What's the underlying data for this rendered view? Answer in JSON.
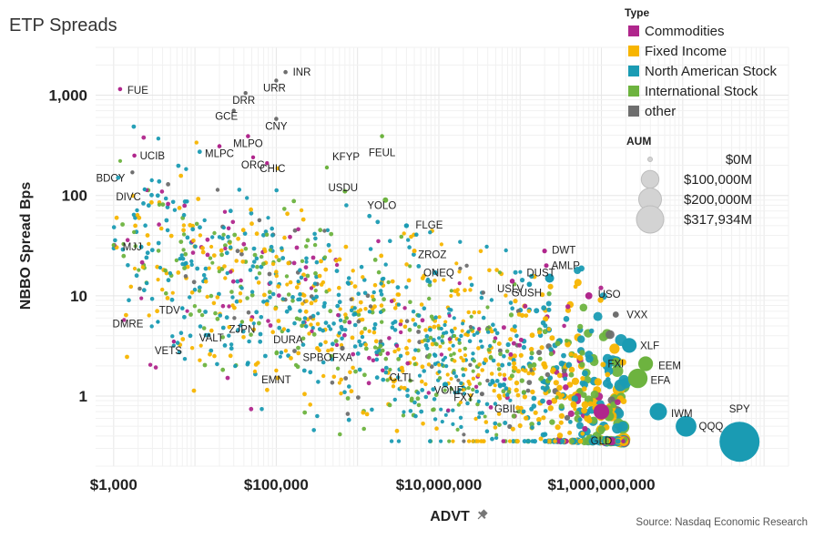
{
  "chart_data": {
    "type": "scatter",
    "title": "ETP Spreads",
    "xlabel": "ADVT",
    "ylabel": "NBBO Spread Bps",
    "x_scale": "log",
    "y_scale": "log",
    "xlim": [
      600,
      200000000000
    ],
    "ylim": [
      0.2,
      3000
    ],
    "x_ticks": [
      1000,
      100000,
      10000000,
      1000000000
    ],
    "x_tick_labels": [
      "$1,000",
      "$100,000",
      "$10,000,000",
      "$1,000,000,000"
    ],
    "y_ticks": [
      1,
      10,
      100,
      1000
    ],
    "y_tick_labels": [
      "1",
      "10",
      "100",
      "1,000"
    ],
    "grid": true,
    "legend_type": {
      "title": "Type",
      "entries": [
        {
          "name": "Commodities",
          "color": "#b0268c"
        },
        {
          "name": "Fixed Income",
          "color": "#f7b500"
        },
        {
          "name": "North American Stock",
          "color": "#1a9bb3"
        },
        {
          "name": "International Stock",
          "color": "#6db33f"
        },
        {
          "name": "other",
          "color": "#6e6e6e"
        }
      ]
    },
    "legend_size": {
      "title": "AUM",
      "entries": [
        {
          "label": "$0M",
          "value": 0
        },
        {
          "label": "$100,000M",
          "value": 100000
        },
        {
          "label": "$200,000M",
          "value": 200000
        },
        {
          "label": "$317,934M",
          "value": 317934
        }
      ]
    },
    "source": "Source: Nasdaq Economic Research",
    "labeled_points": [
      {
        "label": "FUE",
        "type": "Commodities",
        "advt": 1200,
        "spread": 1150,
        "aum": 50
      },
      {
        "label": "INR",
        "type": "other",
        "advt": 130000,
        "spread": 1700,
        "aum": 50
      },
      {
        "label": "URR",
        "type": "other",
        "advt": 100000,
        "spread": 1400,
        "aum": 30
      },
      {
        "label": "DRR",
        "type": "other",
        "advt": 42000,
        "spread": 1050,
        "aum": 20
      },
      {
        "label": "GCE",
        "type": "other",
        "advt": 30000,
        "spread": 700,
        "aum": 30
      },
      {
        "label": "CNY",
        "type": "other",
        "advt": 100000,
        "spread": 580,
        "aum": 60
      },
      {
        "label": "MLPO",
        "type": "Commodities",
        "advt": 45000,
        "spread": 390,
        "aum": 60
      },
      {
        "label": "MLPC",
        "type": "Commodities",
        "advt": 20000,
        "spread": 310,
        "aum": 50
      },
      {
        "label": "UCIB",
        "type": "Commodities",
        "advt": 1800,
        "spread": 250,
        "aum": 80
      },
      {
        "label": "ORG",
        "type": "Commodities",
        "advt": 52000,
        "spread": 240,
        "aum": 40
      },
      {
        "label": "CHIC",
        "type": "Commodities",
        "advt": 77000,
        "spread": 210,
        "aum": 40
      },
      {
        "label": "BDCY",
        "type": "other",
        "advt": 1700,
        "spread": 170,
        "aum": 40
      },
      {
        "label": "KFYP",
        "type": "International Stock",
        "advt": 420000,
        "spread": 190,
        "aum": 40
      },
      {
        "label": "FEUL",
        "type": "International Stock",
        "advt": 2000000,
        "spread": 390,
        "aum": 60
      },
      {
        "label": "DIVC",
        "type": "North American Stock",
        "advt": 2400,
        "spread": 115,
        "aum": 40
      },
      {
        "label": "USDU",
        "type": "International Stock",
        "advt": 700000,
        "spread": 110,
        "aum": 200
      },
      {
        "label": "YOLO",
        "type": "International Stock",
        "advt": 2200000,
        "spread": 90,
        "aum": 800
      },
      {
        "label": "FLGE",
        "type": "North American Stock",
        "advt": 4000000,
        "spread": 50,
        "aum": 400
      },
      {
        "label": "ZROZ",
        "type": "Fixed Income",
        "advt": 5000000,
        "spread": 28,
        "aum": 200
      },
      {
        "label": "MJJ",
        "type": "International Stock",
        "advt": 1000,
        "spread": 32,
        "aum": 20
      },
      {
        "label": "ONEQ",
        "type": "North American Stock",
        "advt": 9000000,
        "spread": 17,
        "aum": 400
      },
      {
        "label": "DWT",
        "type": "Commodities",
        "advt": 200000000,
        "spread": 28,
        "aum": 300
      },
      {
        "label": "DUST",
        "type": "Commodities",
        "advt": 210000000,
        "spread": 20,
        "aum": 200
      },
      {
        "label": "AMLP",
        "type": "North American Stock",
        "advt": 230000000,
        "spread": 15,
        "aum": 7000
      },
      {
        "label": "USLV",
        "type": "Commodities",
        "advt": 80000000,
        "spread": 14,
        "aum": 500
      },
      {
        "label": "GUSH",
        "type": "North American Stock",
        "advt": 130000000,
        "spread": 13,
        "aum": 600
      },
      {
        "label": "USO",
        "type": "Commodities",
        "advt": 700000000,
        "spread": 10,
        "aum": 3000
      },
      {
        "label": "TDV",
        "type": "North American Stock",
        "advt": 7000,
        "spread": 7.5,
        "aum": 50
      },
      {
        "label": "DMRE",
        "type": "North American Stock",
        "advt": 3500,
        "spread": 5.5,
        "aum": 30
      },
      {
        "label": "VXX",
        "type": "other",
        "advt": 1500000000,
        "spread": 6.5,
        "aum": 1500
      },
      {
        "label": "ZJPN",
        "type": "International Stock",
        "advt": 38000,
        "spread": 5.5,
        "aum": 30
      },
      {
        "label": "VALT",
        "type": "Fixed Income",
        "advt": 16000,
        "spread": 4.5,
        "aum": 60
      },
      {
        "label": "DURA",
        "type": "North American Stock",
        "advt": 140000,
        "spread": 4.5,
        "aum": 30
      },
      {
        "label": "VETS",
        "type": "Commodities",
        "advt": 5500,
        "spread": 3.5,
        "aum": 30
      },
      {
        "label": "SPBO",
        "type": "Fixed Income",
        "advt": 320000,
        "spread": 3.0,
        "aum": 120
      },
      {
        "label": "FXA",
        "type": "other",
        "advt": 650000,
        "spread": 3.0,
        "aum": 300
      },
      {
        "label": "XLF",
        "type": "North American Stock",
        "advt": 2200000000,
        "spread": 3.2,
        "aum": 30000
      },
      {
        "label": "FXI",
        "type": "International Stock",
        "advt": 1500000000,
        "spread": 2.2,
        "aum": 5000
      },
      {
        "label": "EEM",
        "type": "International Stock",
        "advt": 3500000000,
        "spread": 2.1,
        "aum": 30000
      },
      {
        "label": "EMNT",
        "type": "Fixed Income",
        "advt": 100000,
        "spread": 1.8,
        "aum": 40
      },
      {
        "label": "CLTL",
        "type": "Fixed Income",
        "advt": 3500000,
        "spread": 1.9,
        "aum": 200
      },
      {
        "label": "EFA",
        "type": "International Stock",
        "advt": 2800000000,
        "spread": 1.5,
        "aum": 60000
      },
      {
        "label": "VONE",
        "type": "North American Stock",
        "advt": 12000000,
        "spread": 1.3,
        "aum": 1000
      },
      {
        "label": "FXY",
        "type": "other",
        "advt": 34000000,
        "spread": 1.05,
        "aum": 200
      },
      {
        "label": "IWM",
        "type": "North American Stock",
        "advt": 5000000000,
        "spread": 0.7,
        "aum": 45000
      },
      {
        "label": "GBIL",
        "type": "Fixed Income",
        "advt": 55000000,
        "spread": 1.0,
        "aum": 300
      },
      {
        "label": "QQQ",
        "type": "North American Stock",
        "advt": 11000000000,
        "spread": 0.5,
        "aum": 70000
      },
      {
        "label": "GLD",
        "type": "Commodities",
        "advt": 1000000000,
        "spread": 0.7,
        "aum": 35000
      },
      {
        "label": "SPY",
        "type": "North American Stock",
        "advt": 50000000000,
        "spread": 0.35,
        "aum": 317934
      }
    ]
  }
}
